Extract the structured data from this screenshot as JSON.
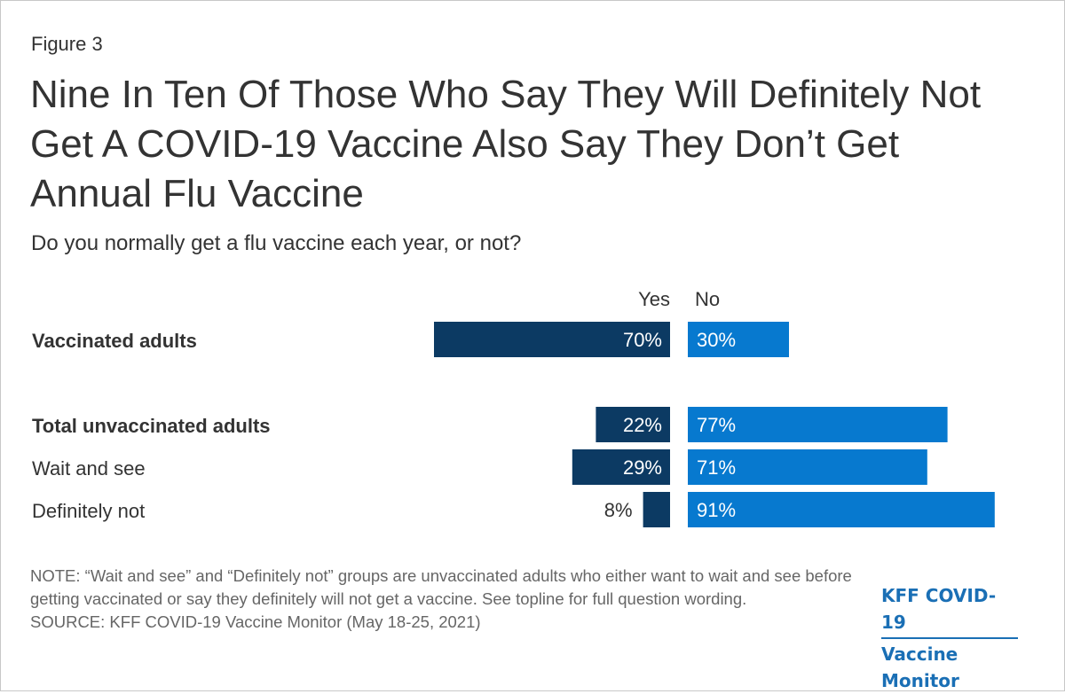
{
  "figure_label": "Figure 3",
  "title": "Nine In Ten Of Those Who Say They Will Definitely Not Get A COVID-19 Vaccine Also Say They Don’t Get Annual Flu Vaccine",
  "subtitle": "Do you normally get a flu vaccine each year, or not?",
  "colors": {
    "yes": "#0c3a63",
    "no": "#0779cf",
    "text": "#333333",
    "label_on_bar": "#ffffff",
    "note": "#666666",
    "logo": "#1a6fb5"
  },
  "chart_data": {
    "type": "bar",
    "orientation": "horizontal-diverging",
    "series": [
      {
        "name": "Yes",
        "values": [
          70,
          22,
          29,
          8
        ]
      },
      {
        "name": "No",
        "values": [
          30,
          77,
          71,
          91
        ]
      }
    ],
    "categories": [
      "Vaccinated adults",
      "Total unvaccinated adults",
      "Wait and see",
      "Definitely not"
    ],
    "category_bold": [
      true,
      true,
      false,
      false
    ],
    "value_labels": {
      "Yes": [
        "70%",
        "22%",
        "29%",
        "8%"
      ],
      "No": [
        "30%",
        "77%",
        "71%",
        "91%"
      ]
    },
    "unit": "%",
    "title": "Nine In Ten Of Those Who Say They Will Definitely Not Get A COVID-19 Vaccine Also Say They Don’t Get Annual Flu Vaccine",
    "xlim": [
      0,
      100
    ],
    "grid": false,
    "legend": "column headers above bars"
  },
  "note": "NOTE: “Wait and see” and “Definitely not” groups are unvaccinated adults who either want to wait and see before getting vaccinated or say they definitely will not get a vaccine. See topline for full question wording.",
  "source": "SOURCE: KFF COVID-19 Vaccine Monitor (May 18-25, 2021)",
  "logo": {
    "line1": "KFF COVID-19",
    "line2": "Vaccine Monitor"
  }
}
